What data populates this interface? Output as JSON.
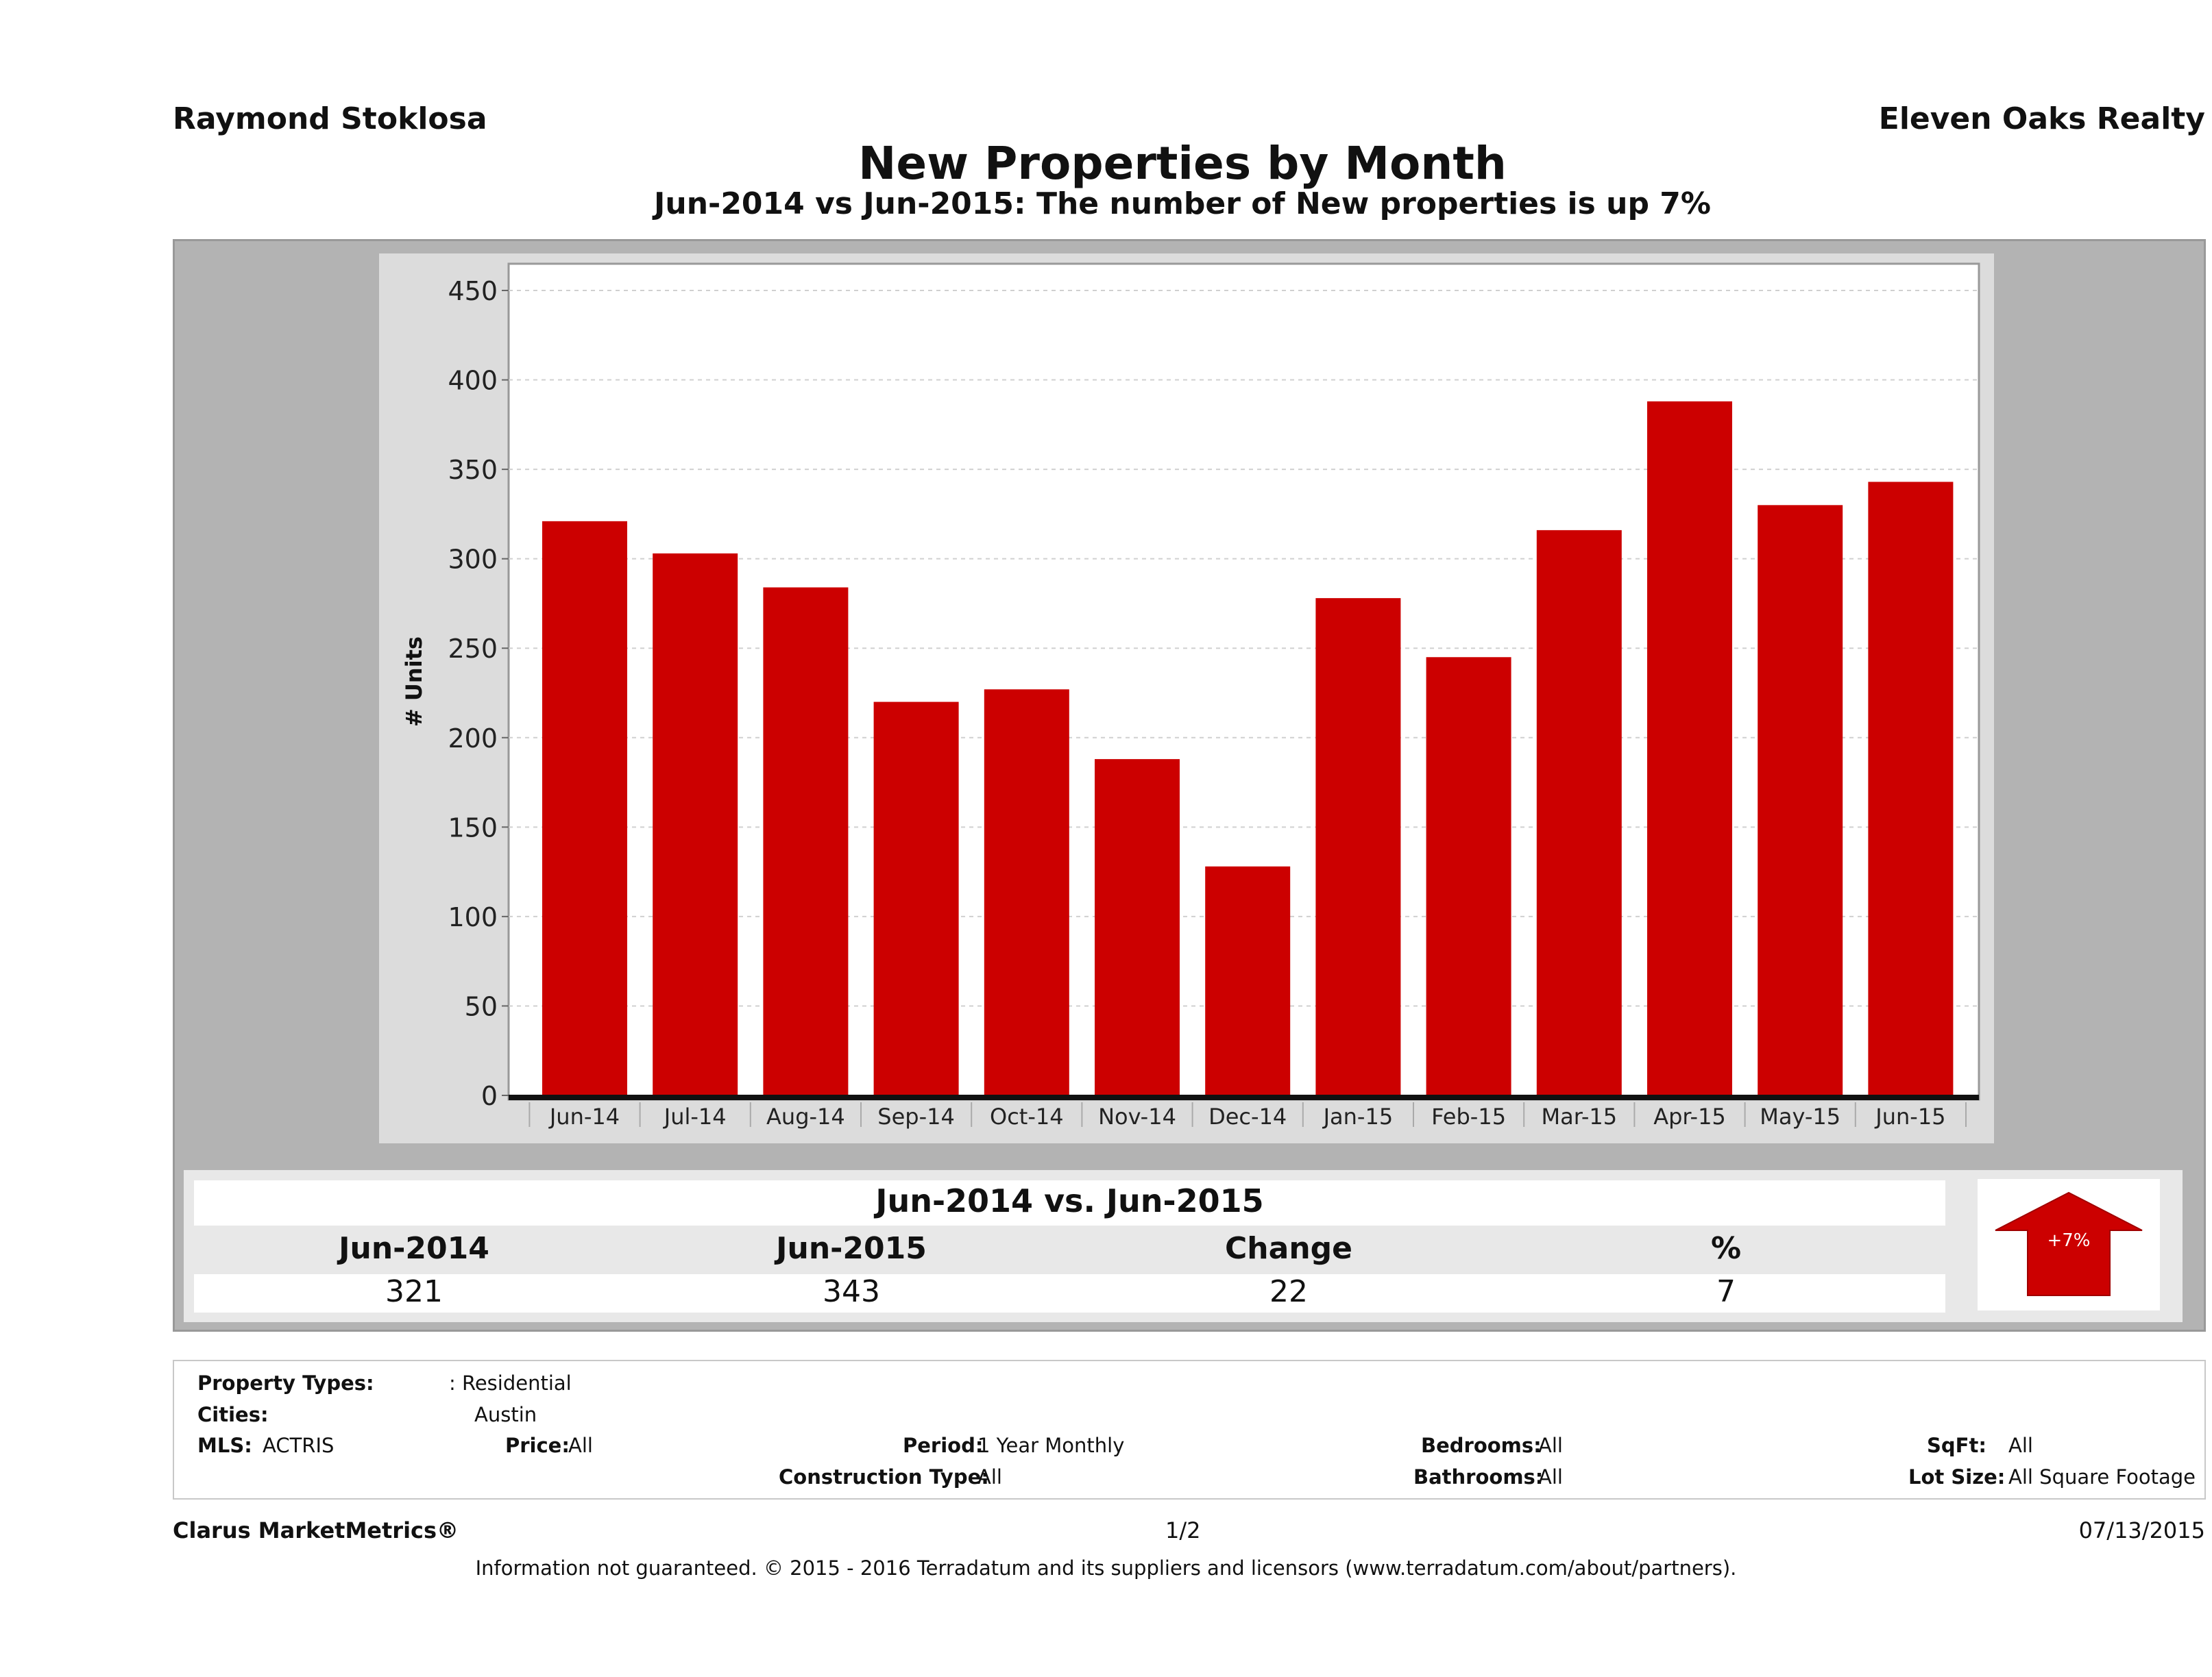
{
  "header": {
    "agent_name": "Raymond Stoklosa",
    "brokerage": "Eleven Oaks Realty",
    "title": "New Properties by Month",
    "subtitle": "Jun-2014 vs Jun-2015: The number of New  properties is up 7%"
  },
  "colors": {
    "bar": "#cc0000",
    "panel_gray": "#b3b3b3",
    "plot_bg_light": "#dcdcdc",
    "arrow_up": "#cc0000"
  },
  "chart_data": {
    "type": "bar",
    "title": "New Properties by Month",
    "subtitle": "Jun-2014 vs Jun-2015: The number of New  properties is up 7%",
    "xlabel": "",
    "ylabel": "# Units",
    "categories": [
      "Jun-14",
      "Jul-14",
      "Aug-14",
      "Sep-14",
      "Oct-14",
      "Nov-14",
      "Dec-14",
      "Jan-15",
      "Feb-15",
      "Mar-15",
      "Apr-15",
      "May-15",
      "Jun-15"
    ],
    "values": [
      321,
      303,
      284,
      220,
      227,
      188,
      128,
      278,
      245,
      316,
      388,
      330,
      343
    ],
    "ylim": [
      0,
      460
    ],
    "yticks": [
      0,
      50,
      100,
      150,
      200,
      250,
      300,
      350,
      400,
      450
    ],
    "grid": true,
    "legend": "none"
  },
  "summary": {
    "title": "Jun-2014 vs. Jun-2015",
    "headers": [
      "Jun-2014",
      "Jun-2015",
      "Change",
      "%"
    ],
    "values": [
      "321",
      "343",
      "22",
      "7"
    ],
    "badge": "+7%",
    "direction": "up"
  },
  "criteria": {
    "property_types_label": "Property Types:",
    "property_types_value": ": Residential",
    "cities_label": "Cities:",
    "cities_value": "Austin",
    "mls_label": "MLS:",
    "mls_value": "ACTRIS",
    "price_label": "Price:",
    "price_value": "All",
    "period_label": "Period:",
    "period_value": "1 Year Monthly",
    "construction_label": "Construction Type:",
    "construction_value": "All",
    "bedrooms_label": "Bedrooms:",
    "bedrooms_value": "All",
    "bathrooms_label": "Bathrooms:",
    "bathrooms_value": "All",
    "sqft_label": "SqFt:",
    "sqft_value": "All",
    "lotsize_label": "Lot Size:",
    "lotsize_value": "All Square Footage"
  },
  "footer": {
    "product": "Clarus MarketMetrics®",
    "page": "1/2",
    "date": "07/13/2015",
    "disclaimer": "Information not guaranteed. © 2015 - 2016 Terradatum and its suppliers and licensors (www.terradatum.com/about/partners)."
  }
}
